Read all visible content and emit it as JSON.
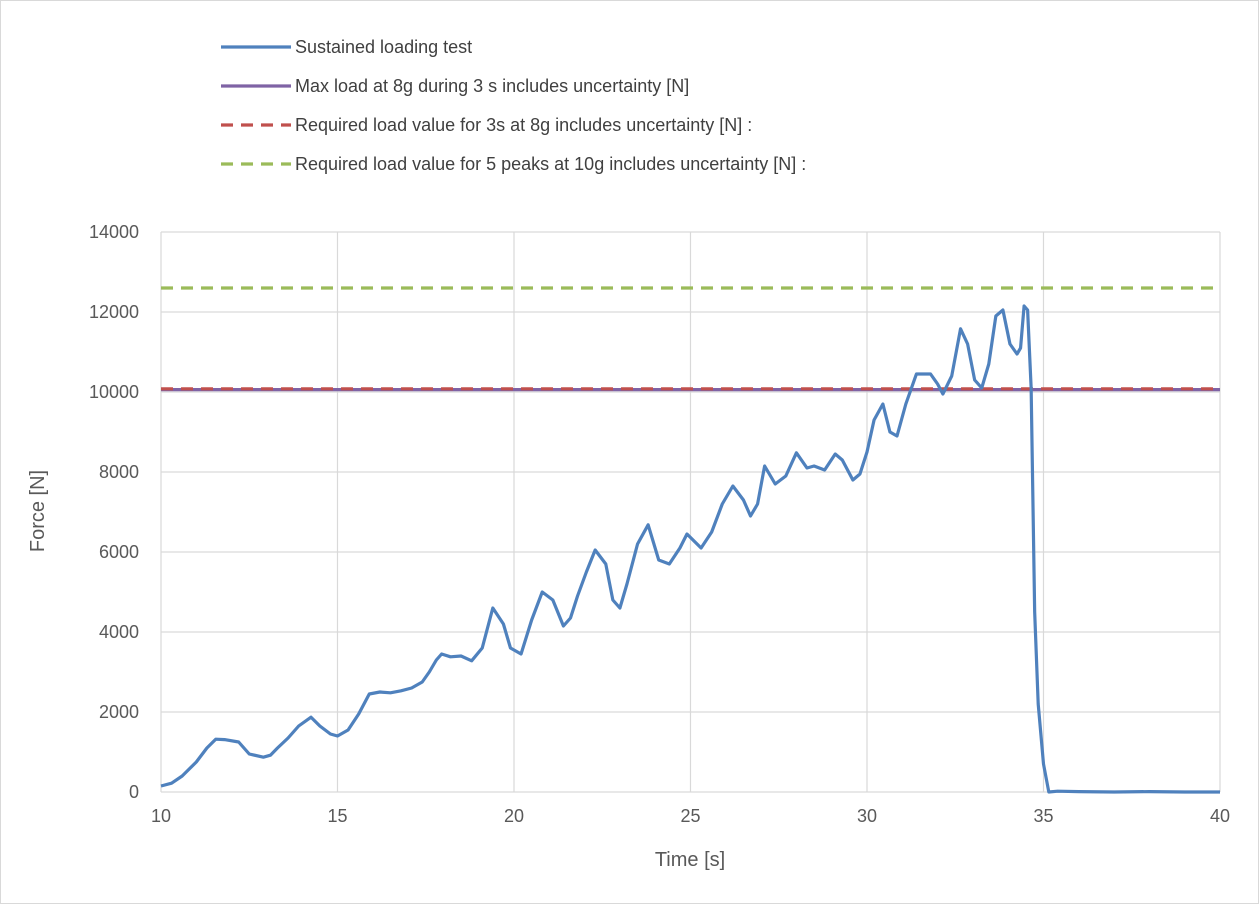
{
  "chart_data": {
    "type": "line",
    "title": "",
    "xlabel": "Time [s]",
    "ylabel": "Force [N]",
    "xlim": [
      10,
      40
    ],
    "ylim": [
      0,
      14000
    ],
    "x_ticks": [
      "10",
      "15",
      "20",
      "25",
      "30",
      "35",
      "40"
    ],
    "y_ticks": [
      "0",
      "2000",
      "4000",
      "6000",
      "8000",
      "10000",
      "12000",
      "14000"
    ],
    "grid": true,
    "legend_position": "top",
    "series": [
      {
        "name": "Sustained loading test",
        "color": "#4f81bd",
        "style": "solid",
        "points": [
          [
            10.0,
            150
          ],
          [
            10.3,
            220
          ],
          [
            10.6,
            400
          ],
          [
            11.0,
            750
          ],
          [
            11.3,
            1100
          ],
          [
            11.55,
            1320
          ],
          [
            11.8,
            1310
          ],
          [
            12.2,
            1250
          ],
          [
            12.5,
            950
          ],
          [
            12.9,
            870
          ],
          [
            13.1,
            920
          ],
          [
            13.3,
            1100
          ],
          [
            13.6,
            1350
          ],
          [
            13.9,
            1650
          ],
          [
            14.25,
            1870
          ],
          [
            14.5,
            1650
          ],
          [
            14.8,
            1450
          ],
          [
            15.0,
            1400
          ],
          [
            15.3,
            1550
          ],
          [
            15.6,
            1950
          ],
          [
            15.9,
            2450
          ],
          [
            16.2,
            2500
          ],
          [
            16.5,
            2480
          ],
          [
            16.8,
            2530
          ],
          [
            17.1,
            2600
          ],
          [
            17.4,
            2750
          ],
          [
            17.6,
            3000
          ],
          [
            17.8,
            3300
          ],
          [
            17.95,
            3450
          ],
          [
            18.2,
            3380
          ],
          [
            18.5,
            3400
          ],
          [
            18.8,
            3280
          ],
          [
            19.1,
            3600
          ],
          [
            19.4,
            4600
          ],
          [
            19.7,
            4200
          ],
          [
            19.9,
            3600
          ],
          [
            20.2,
            3450
          ],
          [
            20.5,
            4300
          ],
          [
            20.8,
            5000
          ],
          [
            21.1,
            4800
          ],
          [
            21.4,
            4150
          ],
          [
            21.6,
            4350
          ],
          [
            21.8,
            4900
          ],
          [
            22.05,
            5500
          ],
          [
            22.3,
            6050
          ],
          [
            22.6,
            5700
          ],
          [
            22.8,
            4800
          ],
          [
            23.0,
            4600
          ],
          [
            23.2,
            5200
          ],
          [
            23.5,
            6200
          ],
          [
            23.8,
            6680
          ],
          [
            24.1,
            5800
          ],
          [
            24.4,
            5700
          ],
          [
            24.7,
            6100
          ],
          [
            24.9,
            6450
          ],
          [
            25.3,
            6100
          ],
          [
            25.6,
            6500
          ],
          [
            25.9,
            7200
          ],
          [
            26.2,
            7650
          ],
          [
            26.5,
            7300
          ],
          [
            26.7,
            6900
          ],
          [
            26.9,
            7200
          ],
          [
            27.1,
            8150
          ],
          [
            27.4,
            7700
          ],
          [
            27.7,
            7900
          ],
          [
            28.0,
            8480
          ],
          [
            28.3,
            8100
          ],
          [
            28.5,
            8150
          ],
          [
            28.8,
            8050
          ],
          [
            29.1,
            8450
          ],
          [
            29.3,
            8300
          ],
          [
            29.6,
            7800
          ],
          [
            29.8,
            7950
          ],
          [
            30.0,
            8500
          ],
          [
            30.2,
            9300
          ],
          [
            30.45,
            9700
          ],
          [
            30.65,
            9000
          ],
          [
            30.85,
            8900
          ],
          [
            31.1,
            9700
          ],
          [
            31.4,
            10450
          ],
          [
            31.8,
            10450
          ],
          [
            32.0,
            10200
          ],
          [
            32.15,
            9950
          ],
          [
            32.4,
            10400
          ],
          [
            32.65,
            11580
          ],
          [
            32.85,
            11200
          ],
          [
            33.05,
            10300
          ],
          [
            33.25,
            10100
          ],
          [
            33.45,
            10700
          ],
          [
            33.65,
            11900
          ],
          [
            33.85,
            12050
          ],
          [
            34.05,
            11200
          ],
          [
            34.25,
            10950
          ],
          [
            34.35,
            11100
          ],
          [
            34.45,
            12150
          ],
          [
            34.55,
            12050
          ],
          [
            34.65,
            10100
          ],
          [
            34.75,
            4500
          ],
          [
            34.85,
            2200
          ],
          [
            35.0,
            700
          ],
          [
            35.15,
            0
          ],
          [
            35.4,
            20
          ],
          [
            36.0,
            10
          ],
          [
            37.0,
            0
          ],
          [
            38.0,
            10
          ],
          [
            39.0,
            0
          ],
          [
            40.0,
            0
          ]
        ]
      },
      {
        "name": "Max load at 8g during 3 s includes uncertainty [N]",
        "color": "#7f63a5",
        "style": "solid",
        "points": [
          [
            10,
            10060
          ],
          [
            40,
            10060
          ]
        ]
      },
      {
        "name": "Required load value for 3s at 8g includes uncertainty [N] :",
        "color": "#c0504d",
        "style": "dashed",
        "points": [
          [
            10,
            10080
          ],
          [
            40,
            10080
          ]
        ]
      },
      {
        "name": "Required load value for 5 peaks at 10g includes uncertainty [N] :",
        "color": "#9bbb59",
        "style": "dashed",
        "points": [
          [
            10,
            12600
          ],
          [
            40,
            12600
          ]
        ]
      }
    ]
  }
}
